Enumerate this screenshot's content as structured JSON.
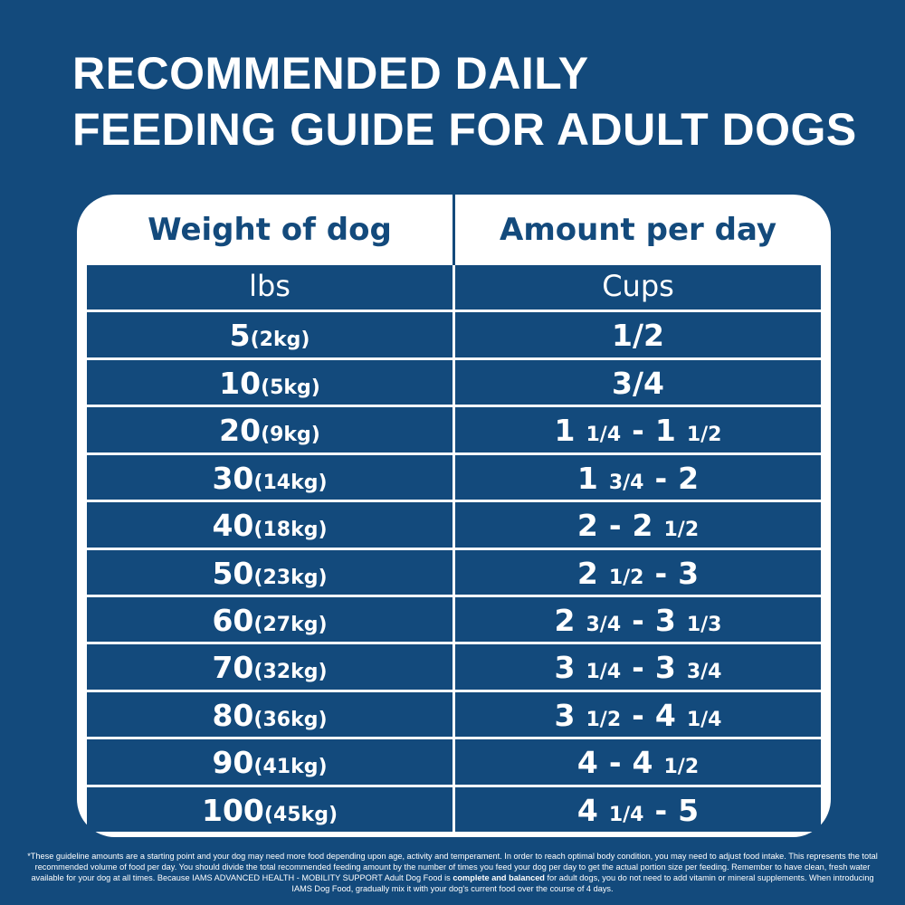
{
  "header": {
    "title_lines": [
      "RECOMMENDED DAILY",
      "FEEDING GUIDE FOR ADULT DOGS"
    ]
  },
  "table": {
    "columns": [
      "Weight of dog",
      "Amount per day"
    ],
    "units": [
      "lbs",
      "Cups"
    ],
    "rows": [
      {
        "lbs": "5",
        "kg": "(2kg)",
        "cups": [
          "1/2"
        ]
      },
      {
        "lbs": "10",
        "kg": "(5kg)",
        "cups": [
          "3/4"
        ]
      },
      {
        "lbs": "20",
        "kg": "(9kg)",
        "cups": [
          "1",
          "1/4",
          "-",
          "1",
          "1/2"
        ]
      },
      {
        "lbs": "30",
        "kg": "(14kg)",
        "cups": [
          "1",
          "3/4",
          "-",
          "2"
        ]
      },
      {
        "lbs": "40",
        "kg": "(18kg)",
        "cups": [
          "2",
          "-",
          "2",
          "1/2"
        ]
      },
      {
        "lbs": "50",
        "kg": "(23kg)",
        "cups": [
          "2",
          "1/2",
          "-",
          "3"
        ]
      },
      {
        "lbs": "60",
        "kg": "(27kg)",
        "cups": [
          "2",
          "3/4",
          "-",
          "3",
          "1/3"
        ]
      },
      {
        "lbs": "70",
        "kg": "(32kg)",
        "cups": [
          "3",
          "1/4",
          "-",
          "3",
          "3/4"
        ]
      },
      {
        "lbs": "80",
        "kg": "(36kg)",
        "cups": [
          "3",
          "1/2",
          "-",
          "4",
          "1/4"
        ]
      },
      {
        "lbs": "90",
        "kg": "(41kg)",
        "cups": [
          "4",
          "-",
          "4",
          "1/2"
        ]
      },
      {
        "lbs": "100",
        "kg": "(45kg)",
        "cups": [
          "4",
          "1/4",
          "-",
          "5"
        ]
      }
    ]
  },
  "footnote": {
    "before": "*These guideline amounts are a starting point and your dog may need more food depending upon age, activity and temperament. In order to reach optimal body condition, you may need to adjust food intake. This represents the total recommended volume of food per day. You should divide the total recommended feeding amount by the number of times you feed your dog per day to get the actual portion size per feeding. Remember to have clean, fresh water available for your dog at all times. Because IAMS ADVANCED HEALTH - MOBILITY SUPPORT Adult Dog Food is",
    "bold": "complete and balanced",
    "after": "for adult dogs, you do not need to add vitamin or mineral supplements. When introducing IAMS Dog Food, gradually mix it with your dog's current food over the course of 4 days."
  }
}
